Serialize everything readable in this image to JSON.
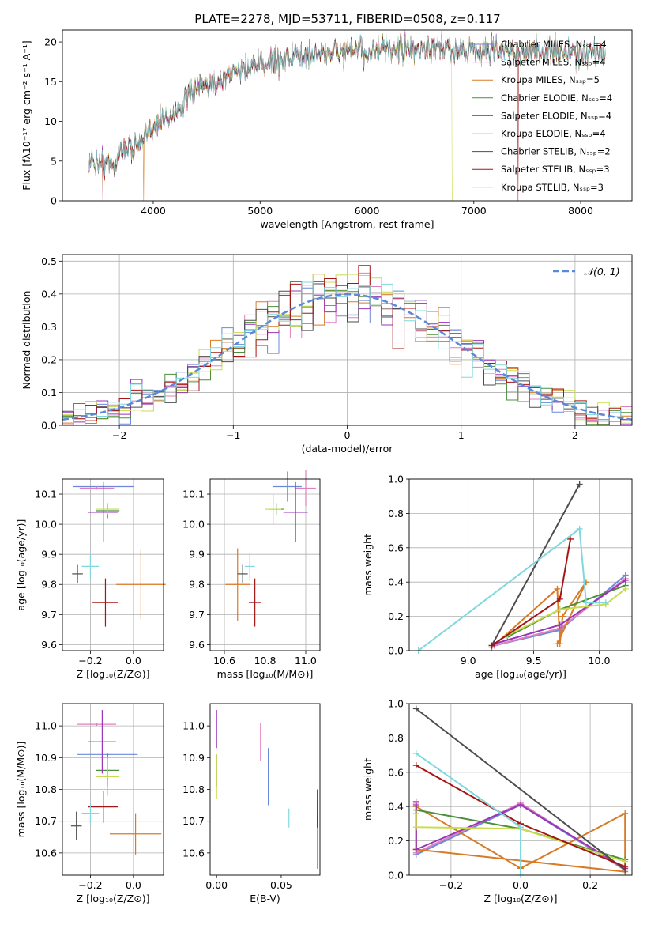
{
  "figure_title": "PLATE=2278, MJD=53711, FIBERID=0508, z=0.117",
  "colors": {
    "Chabrier MILES": "#6a89d8",
    "Salpeter MILES": "#e07fc0",
    "Kroupa MILES": "#d97a24",
    "Chabrier ELODIE": "#4c8f3a",
    "Salpeter ELODIE": "#9a35b8",
    "Kroupa ELODIE": "#c8dc4e",
    "Chabrier STELIB": "#4d4d4d",
    "Salpeter STELIB": "#a61515",
    "Kroupa STELIB": "#7fd8de"
  },
  "chart_data": [
    {
      "id": "spectrum",
      "type": "line",
      "xlabel": "wavelength [Angstrom, rest frame]",
      "ylabel": "Flux [fλ10⁻¹⁷ erg cm⁻² s⁻¹ A⁻¹]",
      "xlim": [
        3150,
        8480
      ],
      "ylim": [
        0,
        21.5
      ],
      "xticks": [
        4000,
        5000,
        6000,
        7000,
        8000
      ],
      "yticks": [
        0,
        5,
        10,
        15,
        20
      ],
      "grid": false,
      "legend_position": "top-right",
      "x_start": 3400,
      "x_end": 8230,
      "continuum": [
        [
          3400,
          5.0
        ],
        [
          3640,
          4.7
        ],
        [
          3700,
          6.5
        ],
        [
          3900,
          7.2
        ],
        [
          4000,
          9.5
        ],
        [
          4200,
          11.0
        ],
        [
          4400,
          14.0
        ],
        [
          4600,
          15.0
        ],
        [
          4800,
          16.5
        ],
        [
          5000,
          17.0
        ],
        [
          5200,
          18.0
        ],
        [
          5500,
          18.5
        ],
        [
          5800,
          18.8
        ],
        [
          6000,
          18.8
        ],
        [
          6300,
          19.0
        ],
        [
          6600,
          19.0
        ],
        [
          7000,
          19.1
        ],
        [
          7400,
          18.8
        ],
        [
          7800,
          18.8
        ],
        [
          8230,
          18.5
        ]
      ],
      "series": [
        {
          "name": "Chabrier MILES",
          "legend": "Chabrier MILES, Nₛₛₚ=4"
        },
        {
          "name": "Salpeter MILES",
          "legend": "Salpeter MILES, Nₛₛₚ=4"
        },
        {
          "name": "Kroupa MILES",
          "legend": "Kroupa MILES, Nₛₛₚ=5"
        },
        {
          "name": "Chabrier ELODIE",
          "legend": "Chabrier ELODIE, Nₛₛₚ=4"
        },
        {
          "name": "Salpeter ELODIE",
          "legend": "Salpeter ELODIE, Nₛₛₚ=4"
        },
        {
          "name": "Kroupa ELODIE",
          "legend": "Kroupa ELODIE, Nₛₛₚ=4"
        },
        {
          "name": "Chabrier STELIB",
          "legend": "Chabrier STELIB, Nₛₛₚ=2"
        },
        {
          "name": "Salpeter STELIB",
          "legend": "Salpeter STELIB, Nₛₛₚ=3"
        },
        {
          "name": "Kroupa STELIB",
          "legend": "Kroupa STELIB, Nₛₛₚ=3"
        }
      ],
      "dropouts": [
        {
          "x": 3530,
          "series": "Salpeter STELIB"
        },
        {
          "x": 3910,
          "series": "Kroupa MILES"
        },
        {
          "x": 6800,
          "series": "Kroupa ELODIE"
        },
        {
          "x": 7415,
          "series": "Salpeter STELIB"
        }
      ]
    },
    {
      "id": "residuals",
      "type": "step",
      "xlabel": "(data-model)/error",
      "ylabel": "Normed distribution",
      "xlim": [
        -2.5,
        2.5
      ],
      "ylim": [
        0,
        0.52
      ],
      "xticks": [
        -2,
        -1,
        0,
        1,
        2
      ],
      "yticks": [
        0.0,
        0.1,
        0.2,
        0.3,
        0.4,
        0.5
      ],
      "grid": true,
      "legend_position": "top-right",
      "bins": {
        "start": -2.5,
        "width": 0.1,
        "count": 50
      },
      "gaussian_label": "𝒩(0, 1)",
      "gaussian_color": "#5b88d8",
      "series_names": [
        "Chabrier MILES",
        "Salpeter MILES",
        "Kroupa MILES",
        "Chabrier ELODIE",
        "Salpeter ELODIE",
        "Kroupa ELODIE",
        "Chabrier STELIB",
        "Salpeter STELIB",
        "Kroupa STELIB"
      ]
    },
    {
      "id": "age_vs_Z",
      "type": "errorbar",
      "xlabel": "Z [log₁₀(Z/Z⊙)]",
      "ylabel": "age  [log₁₀(age/yr)]",
      "xlim": [
        -0.33,
        0.14
      ],
      "ylim": [
        9.58,
        10.15
      ],
      "xticks": [
        -0.2,
        0.0
      ],
      "yticks": [
        9.6,
        9.7,
        9.8,
        9.9,
        10.0,
        10.1
      ],
      "grid": true,
      "points": [
        {
          "series": "Chabrier MILES",
          "x": -0.14,
          "y": 10.125,
          "xerr": 0.14,
          "yerr": 0.0
        },
        {
          "series": "Salpeter MILES",
          "x": -0.17,
          "y": 10.12,
          "xerr": 0.08,
          "yerr": 0.0
        },
        {
          "series": "Kroupa MILES",
          "x": 0.035,
          "y": 9.8,
          "xerr": 0.115,
          "yerr": 0.115
        },
        {
          "series": "Chabrier ELODIE",
          "x": -0.12,
          "y": 10.045,
          "xerr": 0.055,
          "yerr": 0.025
        },
        {
          "series": "Salpeter ELODIE",
          "x": -0.14,
          "y": 10.04,
          "xerr": 0.07,
          "yerr": 0.1
        },
        {
          "series": "Kroupa ELODIE",
          "x": -0.12,
          "y": 10.05,
          "xerr": 0.055,
          "yerr": 0.02
        },
        {
          "series": "Chabrier STELIB",
          "x": -0.26,
          "y": 9.835,
          "xerr": 0.025,
          "yerr": 0.03
        },
        {
          "series": "Salpeter STELIB",
          "x": -0.13,
          "y": 9.74,
          "xerr": 0.06,
          "yerr": 0.08
        },
        {
          "series": "Kroupa STELIB",
          "x": -0.2,
          "y": 9.86,
          "xerr": 0.04,
          "yerr": 0.04
        }
      ]
    },
    {
      "id": "age_vs_mass",
      "type": "errorbar",
      "xlabel": "mass [log₁₀(M/M⊙)]",
      "ylabel": "",
      "xlim": [
        10.53,
        11.07
      ],
      "ylim": [
        9.58,
        10.15
      ],
      "xticks": [
        10.6,
        10.8,
        11.0
      ],
      "yticks": [
        9.6,
        9.7,
        9.8,
        9.9,
        10.0,
        10.1
      ],
      "grid": true,
      "points": [
        {
          "series": "Chabrier MILES",
          "x": 10.91,
          "y": 10.125,
          "xerr": 0.07,
          "yerr": 0.05
        },
        {
          "series": "Salpeter MILES",
          "x": 11.0,
          "y": 10.12,
          "xerr": 0.05,
          "yerr": 0.06
        },
        {
          "series": "Kroupa MILES",
          "x": 10.665,
          "y": 9.8,
          "xerr": 0.06,
          "yerr": 0.12
        },
        {
          "series": "Chabrier ELODIE",
          "x": 10.855,
          "y": 10.05,
          "xerr": 0.04,
          "yerr": 0.02
        },
        {
          "series": "Salpeter ELODIE",
          "x": 10.95,
          "y": 10.04,
          "xerr": 0.06,
          "yerr": 0.1
        },
        {
          "series": "Kroupa ELODIE",
          "x": 10.84,
          "y": 10.05,
          "xerr": 0.04,
          "yerr": 0.05
        },
        {
          "series": "Chabrier STELIB",
          "x": 10.69,
          "y": 9.835,
          "xerr": 0.025,
          "yerr": 0.03
        },
        {
          "series": "Salpeter STELIB",
          "x": 10.75,
          "y": 9.74,
          "xerr": 0.03,
          "yerr": 0.08
        },
        {
          "series": "Kroupa STELIB",
          "x": 10.725,
          "y": 9.86,
          "xerr": 0.025,
          "yerr": 0.045
        }
      ]
    },
    {
      "id": "weight_vs_age",
      "type": "line",
      "xlabel": "age  [log₁₀(age/yr)]",
      "ylabel": "mass weight",
      "xlim": [
        8.55,
        10.25
      ],
      "ylim": [
        0.0,
        1.0
      ],
      "xticks": [
        9.0,
        9.5,
        10.0
      ],
      "yticks": [
        0.0,
        0.2,
        0.4,
        0.6,
        0.8,
        1.0
      ],
      "grid": true,
      "series": [
        {
          "name": "Chabrier MILES",
          "x": [
            9.2,
            9.7,
            10.2
          ],
          "y": [
            0.03,
            0.12,
            0.44
          ]
        },
        {
          "name": "Salpeter MILES",
          "x": [
            9.2,
            9.7,
            10.2
          ],
          "y": [
            0.03,
            0.13,
            0.42
          ]
        },
        {
          "name": "Kroupa MILES",
          "x": [
            9.18,
            9.68,
            9.7,
            9.72,
            9.9,
            9.68
          ],
          "y": [
            0.02,
            0.36,
            0.04,
            0.2,
            0.4,
            0.04
          ]
        },
        {
          "name": "Chabrier ELODIE",
          "x": [
            9.3,
            9.7,
            10.2
          ],
          "y": [
            0.08,
            0.24,
            0.38
          ]
        },
        {
          "name": "Salpeter ELODIE",
          "x": [
            9.2,
            9.7,
            10.2
          ],
          "y": [
            0.04,
            0.15,
            0.41
          ]
        },
        {
          "name": "Kroupa ELODIE",
          "x": [
            9.3,
            9.7,
            10.05,
            10.2
          ],
          "y": [
            0.09,
            0.24,
            0.27,
            0.36
          ]
        },
        {
          "name": "Chabrier STELIB",
          "x": [
            9.18,
            9.85
          ],
          "y": [
            0.03,
            0.97
          ]
        },
        {
          "name": "Salpeter STELIB",
          "x": [
            9.18,
            9.7,
            9.78
          ],
          "y": [
            0.03,
            0.3,
            0.65
          ]
        },
        {
          "name": "Kroupa STELIB",
          "x": [
            8.62,
            9.85,
            9.9,
            10.05
          ],
          "y": [
            0.0,
            0.71,
            0.28,
            0.28
          ]
        }
      ]
    },
    {
      "id": "mass_vs_Z",
      "type": "errorbar",
      "xlabel": "Z [log₁₀(Z/Z⊙)]",
      "ylabel": "mass [log₁₀(M/M⊙)]",
      "xlim": [
        -0.33,
        0.14
      ],
      "ylim": [
        10.53,
        11.07
      ],
      "xticks": [
        -0.2,
        0.0
      ],
      "yticks": [
        10.6,
        10.7,
        10.8,
        10.9,
        11.0
      ],
      "grid": true,
      "points": [
        {
          "series": "Chabrier MILES",
          "x": -0.12,
          "y": 10.91,
          "xerr": 0.14,
          "yerr": 0.0
        },
        {
          "series": "Salpeter MILES",
          "x": -0.17,
          "y": 11.005,
          "xerr": 0.09,
          "yerr": 0.0
        },
        {
          "series": "Kroupa MILES",
          "x": 0.01,
          "y": 10.66,
          "xerr": 0.12,
          "yerr": 0.065
        },
        {
          "series": "Chabrier ELODIE",
          "x": -0.12,
          "y": 10.86,
          "xerr": 0.055,
          "yerr": 0.05
        },
        {
          "series": "Salpeter ELODIE",
          "x": -0.145,
          "y": 10.95,
          "xerr": 0.065,
          "yerr": 0.1
        },
        {
          "series": "Kroupa ELODIE",
          "x": -0.12,
          "y": 10.84,
          "xerr": 0.055,
          "yerr": 0.06
        },
        {
          "series": "Chabrier STELIB",
          "x": -0.265,
          "y": 10.685,
          "xerr": 0.025,
          "yerr": 0.045
        },
        {
          "series": "Salpeter STELIB",
          "x": -0.14,
          "y": 10.745,
          "xerr": 0.07,
          "yerr": 0.05
        },
        {
          "series": "Kroupa STELIB",
          "x": -0.2,
          "y": 10.725,
          "xerr": 0.04,
          "yerr": 0.03
        }
      ]
    },
    {
      "id": "mass_vs_ebv",
      "type": "errorbar",
      "xlabel": "E(B-V)",
      "ylabel": "",
      "xlim": [
        -0.005,
        0.08
      ],
      "ylim": [
        10.53,
        11.07
      ],
      "xticks": [
        0.0,
        0.05
      ],
      "yticks": [
        10.6,
        10.7,
        10.8,
        10.9,
        11.0
      ],
      "grid": false,
      "points": [
        {
          "series": "Chabrier MILES",
          "x": 0.04,
          "y": 10.84,
          "xerr": 0.0,
          "yerr": 0.09
        },
        {
          "series": "Salpeter MILES",
          "x": 0.034,
          "y": 10.95,
          "xerr": 0.0,
          "yerr": 0.06
        },
        {
          "series": "Kroupa MILES",
          "x": 0.078,
          "y": 10.66,
          "xerr": 0.0,
          "yerr": 0.11
        },
        {
          "series": "Chabrier ELODIE",
          "x": 0.0,
          "y": 10.86,
          "xerr": 0.0,
          "yerr": 0.05
        },
        {
          "series": "Salpeter ELODIE",
          "x": 0.0,
          "y": 10.99,
          "xerr": 0.0,
          "yerr": 0.06
        },
        {
          "series": "Kroupa ELODIE",
          "x": 0.0,
          "y": 10.84,
          "xerr": 0.0,
          "yerr": 0.07
        },
        {
          "series": "Chabrier STELIB",
          "x": 0.078,
          "y": 10.7,
          "xerr": 0.0,
          "yerr": 0.02
        },
        {
          "series": "Salpeter STELIB",
          "x": 0.078,
          "y": 10.74,
          "xerr": 0.0,
          "yerr": 0.06
        },
        {
          "series": "Kroupa STELIB",
          "x": 0.056,
          "y": 10.71,
          "xerr": 0.0,
          "yerr": 0.03
        }
      ]
    },
    {
      "id": "weight_vs_Z",
      "type": "line",
      "xlabel": "Z [log₁₀(Z/Z⊙)]",
      "ylabel": "mass weight",
      "xlim": [
        -0.32,
        0.32
      ],
      "ylim": [
        0.0,
        1.0
      ],
      "xticks": [
        -0.2,
        0.0,
        0.2
      ],
      "yticks": [
        0.0,
        0.2,
        0.4,
        0.6,
        0.8,
        1.0
      ],
      "grid": true,
      "series": [
        {
          "name": "Chabrier MILES",
          "x": [
            -0.3,
            -0.3,
            0.0,
            0.3
          ],
          "y": [
            0.43,
            0.12,
            0.41,
            0.03
          ]
        },
        {
          "name": "Salpeter MILES",
          "x": [
            -0.3,
            -0.3,
            0.0,
            0.3
          ],
          "y": [
            0.42,
            0.13,
            0.42,
            0.03
          ]
        },
        {
          "name": "Kroupa MILES",
          "x": [
            -0.3,
            -0.3,
            0.0,
            0.3,
            0.3,
            -0.3
          ],
          "y": [
            0.15,
            0.4,
            0.04,
            0.36,
            0.02,
            0.15
          ]
        },
        {
          "name": "Chabrier ELODIE",
          "x": [
            -0.3,
            0.0,
            0.3
          ],
          "y": [
            0.38,
            0.27,
            0.09
          ]
        },
        {
          "name": "Salpeter ELODIE",
          "x": [
            -0.3,
            -0.3,
            0.0,
            0.3
          ],
          "y": [
            0.41,
            0.15,
            0.41,
            0.04
          ]
        },
        {
          "name": "Kroupa ELODIE",
          "x": [
            -0.3,
            -0.3,
            0.0,
            0.3
          ],
          "y": [
            0.36,
            0.28,
            0.27,
            0.08
          ]
        },
        {
          "name": "Chabrier STELIB",
          "x": [
            -0.3,
            0.3
          ],
          "y": [
            0.97,
            0.03
          ]
        },
        {
          "name": "Salpeter STELIB",
          "x": [
            -0.3,
            0.0,
            0.3
          ],
          "y": [
            0.64,
            0.3,
            0.05
          ]
        },
        {
          "name": "Kroupa STELIB",
          "x": [
            -0.3,
            0.0,
            0.0,
            0.0
          ],
          "y": [
            0.71,
            0.28,
            0.0,
            0.28
          ]
        }
      ]
    }
  ]
}
